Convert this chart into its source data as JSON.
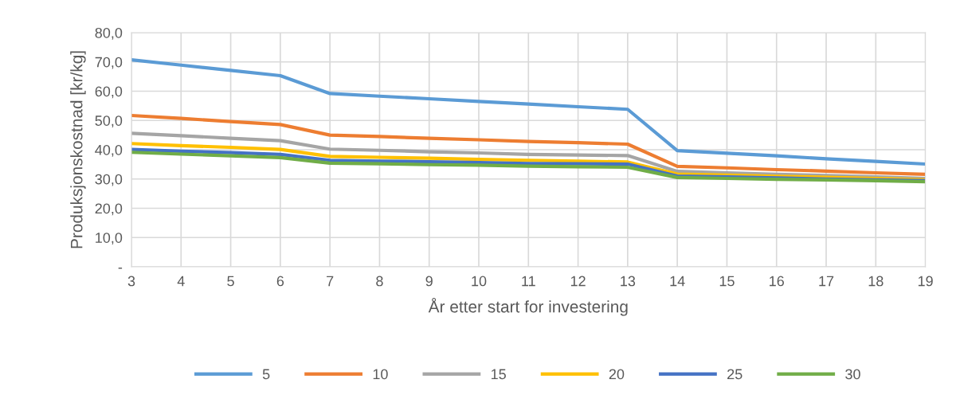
{
  "chart_data": {
    "type": "line",
    "xlabel": "År etter start for investering",
    "ylabel": "Produksjonskostnad [kr/kg]",
    "x": [
      3,
      4,
      5,
      6,
      7,
      8,
      9,
      10,
      11,
      12,
      13,
      14,
      15,
      16,
      17,
      18,
      19
    ],
    "series": [
      {
        "name": "5",
        "color": "#5b9bd5",
        "values": [
          70.7,
          68.9,
          67.1,
          65.3,
          59.2,
          58.3,
          57.4,
          56.5,
          55.6,
          54.7,
          53.8,
          39.7,
          38.8,
          37.9,
          36.9,
          36.0,
          35.1
        ]
      },
      {
        "name": "10",
        "color": "#ed7d31",
        "values": [
          51.7,
          50.7,
          49.6,
          48.6,
          45.0,
          44.5,
          43.9,
          43.4,
          42.8,
          42.4,
          41.9,
          34.3,
          33.8,
          33.2,
          32.7,
          32.1,
          31.6
        ]
      },
      {
        "name": "15",
        "color": "#a5a5a5",
        "values": [
          45.6,
          44.8,
          43.9,
          43.1,
          40.2,
          39.8,
          39.3,
          38.9,
          38.4,
          38.2,
          38.0,
          32.6,
          32.1,
          31.6,
          31.2,
          30.7,
          30.2
        ]
      },
      {
        "name": "20",
        "color": "#ffc000",
        "values": [
          42.1,
          41.4,
          40.8,
          40.1,
          37.7,
          37.4,
          37.1,
          36.7,
          36.4,
          36.1,
          35.8,
          31.7,
          31.3,
          30.9,
          30.6,
          30.2,
          29.8
        ]
      },
      {
        "name": "25",
        "color": "#4472c4",
        "values": [
          40.1,
          39.5,
          39.0,
          38.4,
          36.4,
          36.1,
          35.9,
          35.6,
          35.3,
          35.2,
          35.1,
          31.0,
          30.7,
          30.4,
          30.0,
          29.7,
          29.4
        ]
      },
      {
        "name": "30",
        "color": "#70ad47",
        "values": [
          39.1,
          38.5,
          37.9,
          37.3,
          35.4,
          35.2,
          34.9,
          34.7,
          34.4,
          34.2,
          34.0,
          30.5,
          30.2,
          29.9,
          29.7,
          29.4,
          29.1
        ]
      }
    ],
    "xlim": [
      3,
      19
    ],
    "xticks": [
      3,
      4,
      5,
      6,
      7,
      8,
      9,
      10,
      11,
      12,
      13,
      14,
      15,
      16,
      17,
      18,
      19
    ],
    "ylim": [
      0,
      80
    ],
    "yticks": [
      {
        "value": 0,
        "label": "-"
      },
      {
        "value": 10,
        "label": "10,0"
      },
      {
        "value": 20,
        "label": "20,0"
      },
      {
        "value": 30,
        "label": "30,0"
      },
      {
        "value": 40,
        "label": "40,0"
      },
      {
        "value": 50,
        "label": "50,0"
      },
      {
        "value": 60,
        "label": "60,0"
      },
      {
        "value": 70,
        "label": "70,0"
      },
      {
        "value": 80,
        "label": "80,0"
      }
    ],
    "grid": true,
    "legend": "bottom",
    "marker": "none",
    "line_style": "solid"
  }
}
